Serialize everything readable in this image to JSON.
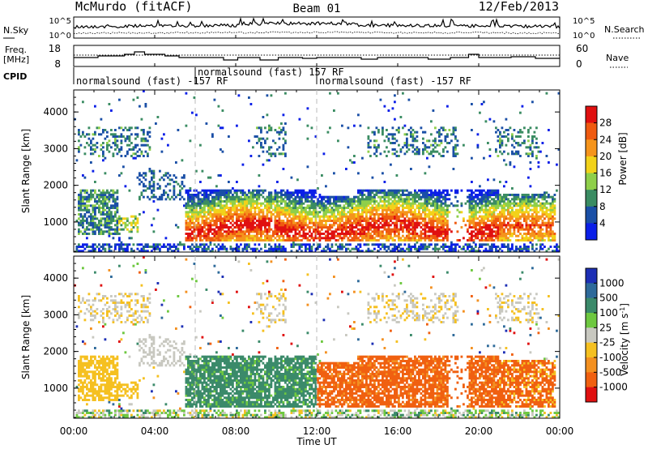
{
  "header": {
    "station": "McMurdo (fitACF)",
    "beam": "Beam 01",
    "date": "12/Feb/2013"
  },
  "noise_panel": {
    "left_label": "N.Sky",
    "right_label": "N.Search",
    "left_ticks": [
      "10^5",
      "10^0"
    ],
    "right_ticks": [
      "10^5",
      "10^0"
    ]
  },
  "freq_panel": {
    "left_label_1": "Freq.",
    "left_label_2": "[MHz]",
    "right_label": "Nave",
    "left_ticks": [
      "18",
      "8"
    ],
    "right_ticks": [
      "60",
      "0"
    ]
  },
  "cpid_panel": {
    "label": "CPID",
    "segments": [
      {
        "start_hour": 0.0,
        "text": "normalsound (fast) -157 RF"
      },
      {
        "start_hour": 6.0,
        "text": "normalsound (fast) 157 RF"
      },
      {
        "start_hour": 12.0,
        "text": "normalsound (fast) -157 RF"
      }
    ]
  },
  "chart_data": [
    {
      "type": "heatmap",
      "name_printed": "Power [dB]",
      "xlabel": "",
      "ylabel": "Slant Range [km]",
      "xlim_hours": [
        0,
        24
      ],
      "ylim": [
        180,
        4600
      ],
      "yticks": [
        1000,
        2000,
        3000,
        4000
      ],
      "colorbar": {
        "label": "Power [dB]",
        "tick_labels": [
          "4",
          "8",
          "12",
          "16",
          "20",
          "24",
          "28"
        ],
        "colors": [
          "#0b1fe8",
          "#1a4fa6",
          "#3a8c62",
          "#8fcf4a",
          "#f2d21a",
          "#f5941c",
          "#ef5a10",
          "#e01010"
        ]
      }
    },
    {
      "type": "heatmap",
      "name_printed": "Velocity [m s-1]",
      "xlabel": "Time UT",
      "ylabel": "Slant Range [km]",
      "xlim_hours": [
        0,
        24
      ],
      "ylim": [
        180,
        4600
      ],
      "yticks": [
        1000,
        2000,
        3000,
        4000
      ],
      "xticks": [
        "00:00",
        "04:00",
        "08:00",
        "12:00",
        "16:00",
        "20:00",
        "00:00"
      ],
      "colorbar": {
        "label": "Velocity [m s",
        "label_sup": "-1",
        "label_end": "]",
        "tick_labels": [
          "1000",
          "500",
          "100",
          "25",
          "-25",
          "-100",
          "-500",
          "-1000"
        ],
        "colors": [
          "#1d2fb5",
          "#2e6a9a",
          "#3b8a6a",
          "#6ec840",
          "#c8c8c0",
          "#f5c020",
          "#f39020",
          "#f06010",
          "#e01010"
        ]
      }
    }
  ]
}
